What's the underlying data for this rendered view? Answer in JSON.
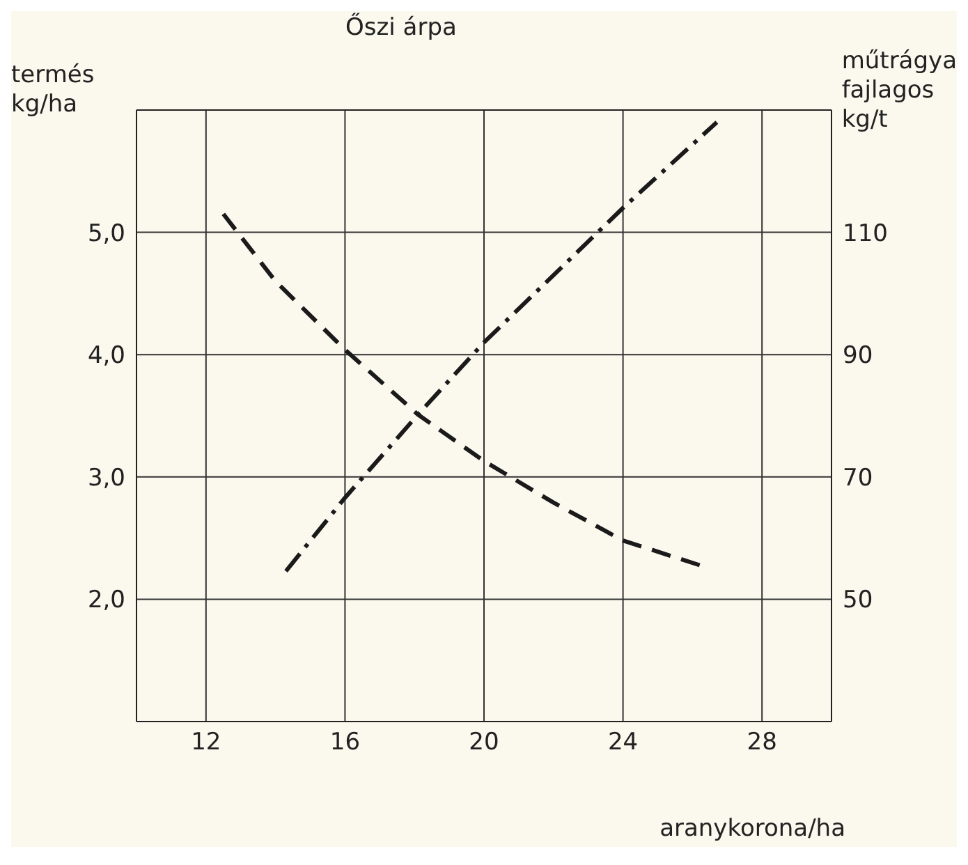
{
  "chart_data": {
    "type": "line",
    "title": "Őszi árpa",
    "xlabel": "aranykorona/ha",
    "ylabel": "termés\nkg/ha",
    "y2label": "műtrágya\nfajlagos\nkg/t",
    "xlim": [
      10,
      30
    ],
    "xticks": [
      12,
      16,
      20,
      24,
      28
    ],
    "ylim": [
      1,
      6
    ],
    "yticks": [
      {
        "value": 2,
        "label": "2,0"
      },
      {
        "value": 3,
        "label": "3,0"
      },
      {
        "value": 4,
        "label": "4,0"
      },
      {
        "value": 5,
        "label": "5,0"
      }
    ],
    "y2lim": [
      30,
      130
    ],
    "y2ticks": [
      50,
      70,
      90,
      110
    ],
    "grid": true,
    "marker": "none",
    "series": [
      {
        "color": "#1a1a1a",
        "line_style": "dashed",
        "x": [
          12.5,
          14,
          16,
          18.1,
          20,
          22,
          24,
          26.3
        ],
        "values": [
          5.15,
          4.6,
          4.04,
          3.51,
          3.13,
          2.79,
          2.48,
          2.27
        ]
      },
      {
        "color": "#1a1a1a",
        "line_style": "dashdot",
        "axis": "y2",
        "x": [
          14.3,
          16,
          18.1,
          20,
          22,
          24,
          26.7
        ],
        "values": [
          54.6,
          66.6,
          80.2,
          92,
          103,
          114,
          128
        ]
      }
    ]
  }
}
